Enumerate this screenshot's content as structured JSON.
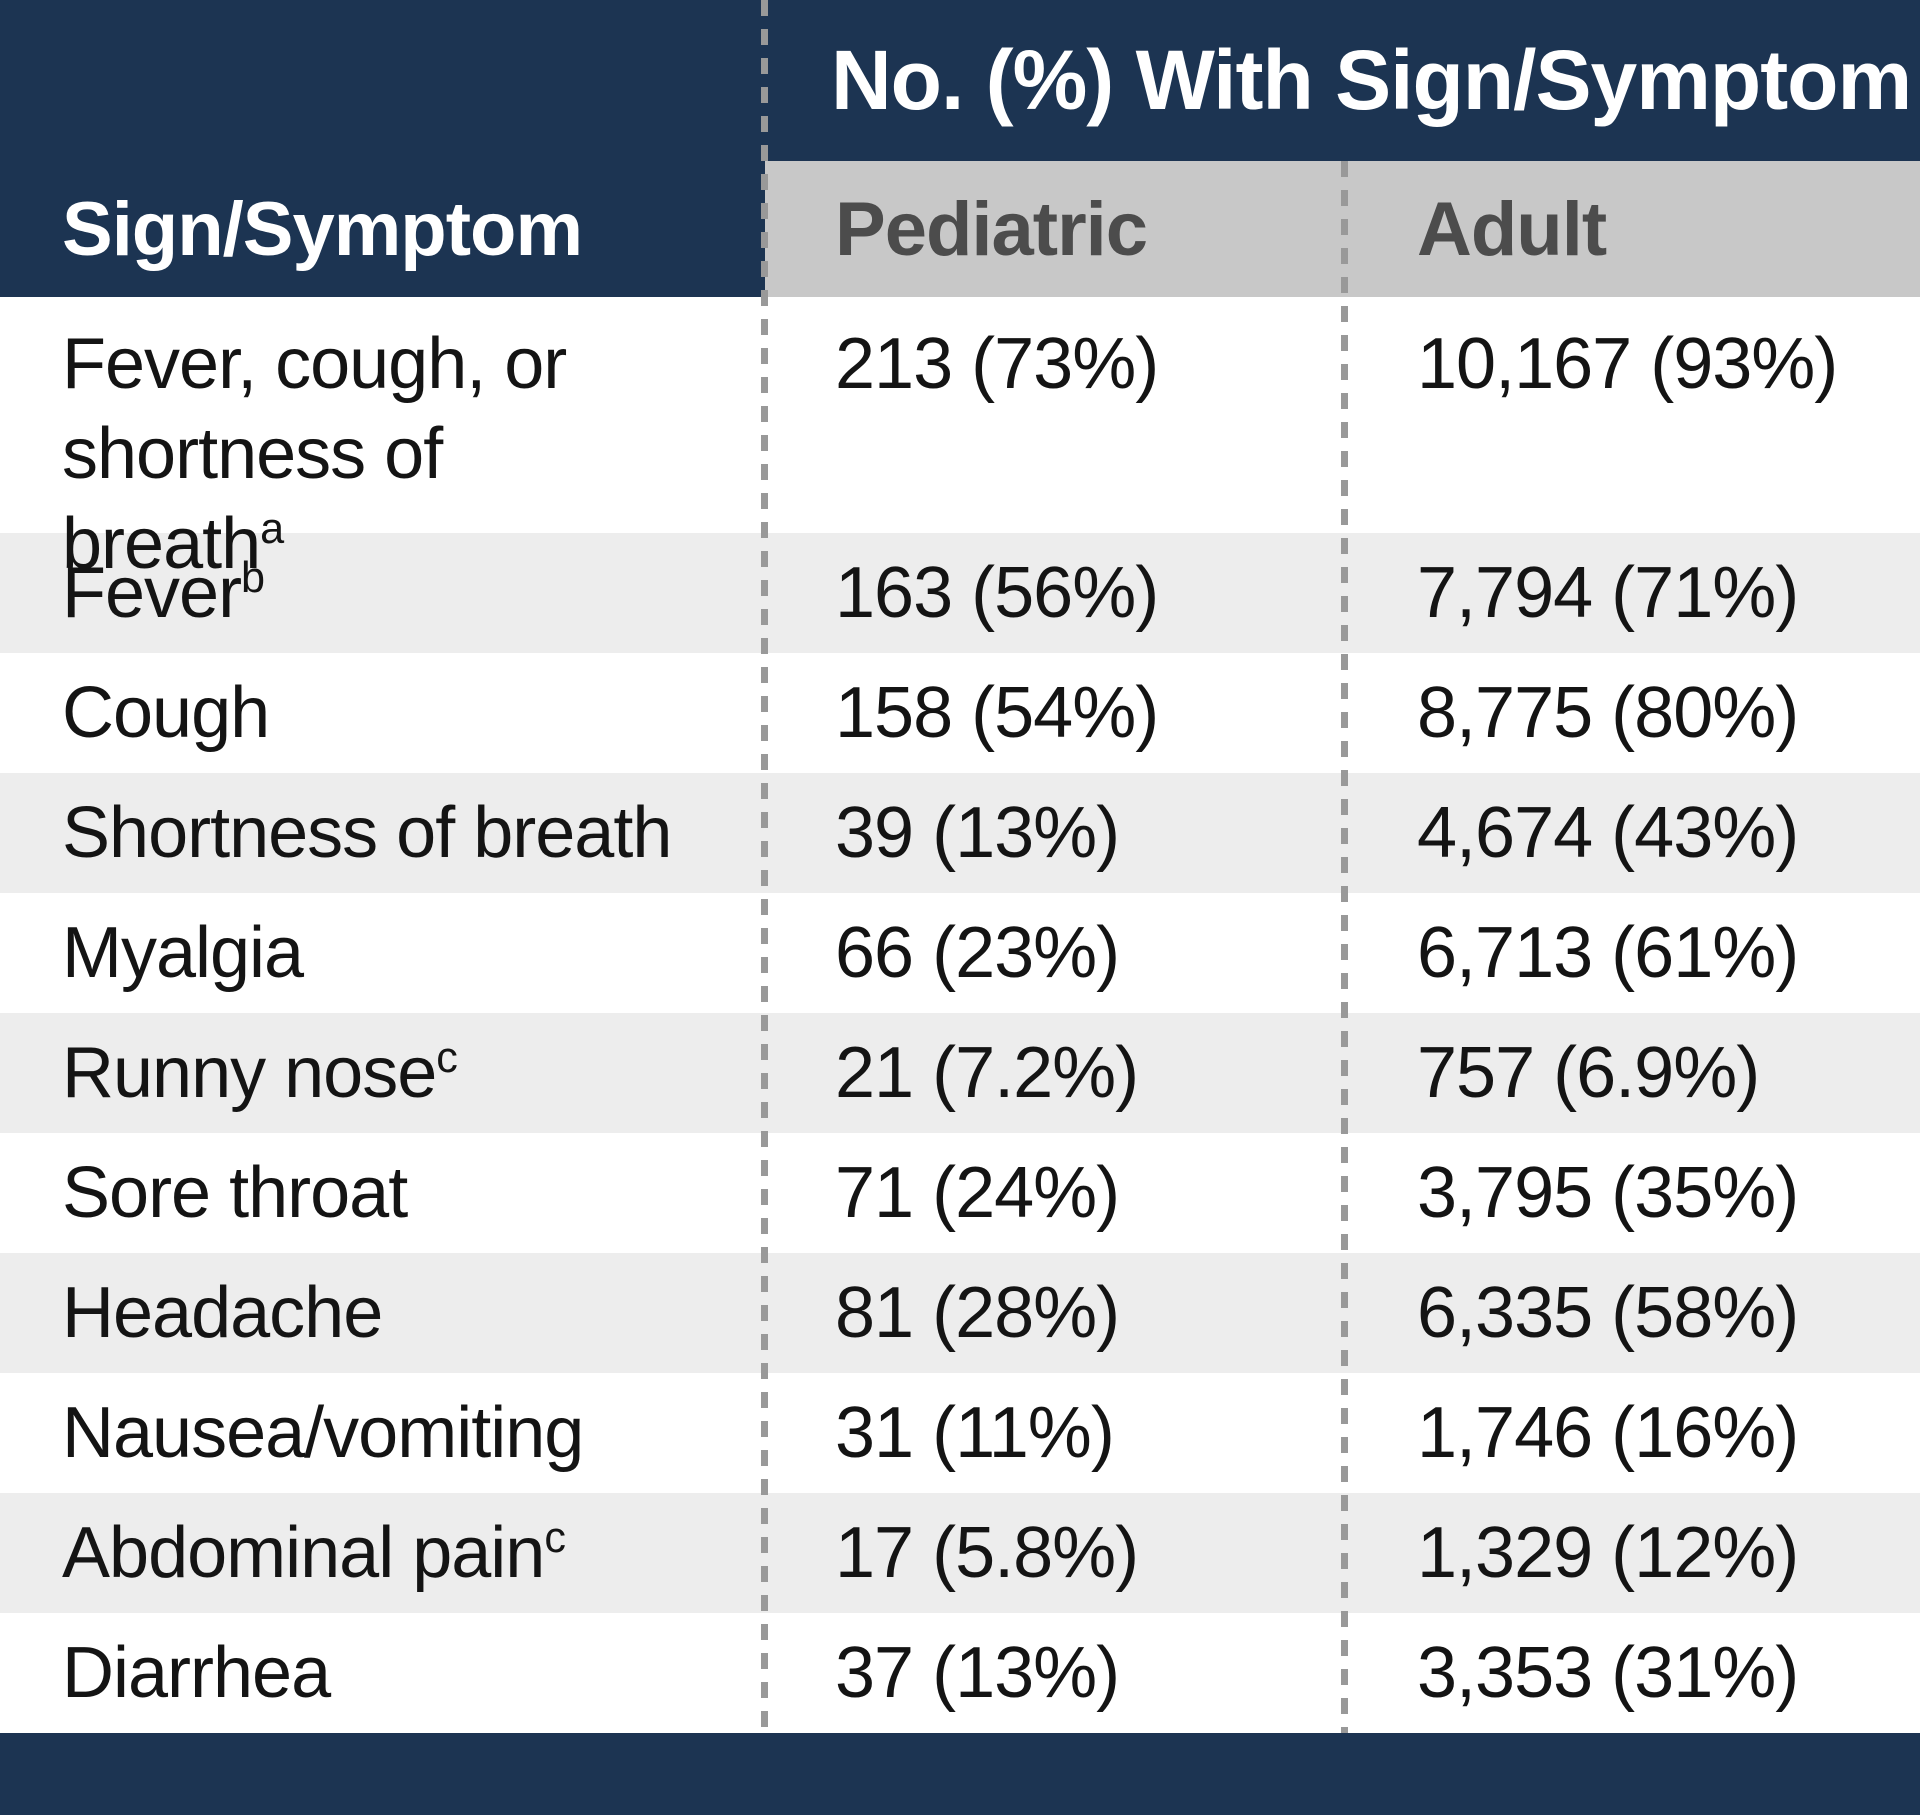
{
  "table": {
    "group_header": "No. (%) With Sign/Symptom",
    "col1_header": "Sign/Symptom",
    "col2_header": "Pediatric",
    "col3_header": "Adult",
    "rows": [
      {
        "label": "Fever, cough, or shortness of breath",
        "sup": "a",
        "pediatric": "213 (73%)",
        "adult": "10,167 (93%)"
      },
      {
        "label": "Fever",
        "sup": "b",
        "pediatric": "163 (56%)",
        "adult": "7,794 (71%)"
      },
      {
        "label": "Cough",
        "sup": "",
        "pediatric": "158 (54%)",
        "adult": "8,775 (80%)"
      },
      {
        "label": "Shortness of breath",
        "sup": "",
        "pediatric": "39 (13%)",
        "adult": "4,674 (43%)"
      },
      {
        "label": "Myalgia",
        "sup": "",
        "pediatric": "66 (23%)",
        "adult": "6,713 (61%)"
      },
      {
        "label": "Runny nose",
        "sup": "c",
        "pediatric": "21 (7.2%)",
        "adult": "757 (6.9%)"
      },
      {
        "label": "Sore throat",
        "sup": "",
        "pediatric": "71 (24%)",
        "adult": "3,795 (35%)"
      },
      {
        "label": "Headache",
        "sup": "",
        "pediatric": "81 (28%)",
        "adult": "6,335 (58%)"
      },
      {
        "label": "Nausea/vomiting",
        "sup": "",
        "pediatric": "31 (11%)",
        "adult": "1,746 (16%)"
      },
      {
        "label": "Abdominal pain",
        "sup": "c",
        "pediatric": "17 (5.8%)",
        "adult": "1,329 (12%)"
      },
      {
        "label": "Diarrhea",
        "sup": "",
        "pediatric": "37 (13%)",
        "adult": "3,353 (31%)"
      }
    ]
  },
  "colors": {
    "navy": "#1c3452",
    "subheader_band": "#c8c8c8",
    "row_stripe": "#ededed",
    "row_white": "#ffffff",
    "dash": "#999999",
    "header_text": "#ffffff",
    "subheader_text": "#4c4c4c",
    "body_text": "#141414"
  },
  "chart_data": {
    "type": "table",
    "title": "No. (%) With Sign/Symptom",
    "columns": [
      "Sign/Symptom",
      "Pediatric",
      "Adult"
    ],
    "categories": [
      "Fever, cough, or shortness of breath",
      "Fever",
      "Cough",
      "Shortness of breath",
      "Myalgia",
      "Runny nose",
      "Sore throat",
      "Headache",
      "Nausea/vomiting",
      "Abdominal pain",
      "Diarrhea"
    ],
    "footnote_markers": [
      "a",
      "b",
      "",
      "",
      "",
      "c",
      "",
      "",
      "",
      "c",
      ""
    ],
    "series": [
      {
        "name": "Pediatric",
        "n": [
          213,
          163,
          158,
          39,
          66,
          21,
          71,
          81,
          31,
          17,
          37
        ],
        "pct": [
          73,
          56,
          54,
          13,
          23,
          7.2,
          24,
          28,
          11,
          5.8,
          13
        ]
      },
      {
        "name": "Adult",
        "n": [
          10167,
          7794,
          8775,
          4674,
          6713,
          757,
          3795,
          6335,
          1746,
          1329,
          3353
        ],
        "pct": [
          93,
          71,
          80,
          43,
          61,
          6.9,
          35,
          58,
          16,
          12,
          31
        ]
      }
    ],
    "cells": [
      [
        "Fever, cough, or shortness of breath",
        "213 (73%)",
        "10,167 (93%)"
      ],
      [
        "Fever",
        "163 (56%)",
        "7,794 (71%)"
      ],
      [
        "Cough",
        "158 (54%)",
        "8,775 (80%)"
      ],
      [
        "Shortness of breath",
        "39 (13%)",
        "4,674 (43%)"
      ],
      [
        "Myalgia",
        "66 (23%)",
        "6,713 (61%)"
      ],
      [
        "Runny nose",
        "21 (7.2%)",
        "757 (6.9%)"
      ],
      [
        "Sore throat",
        "71 (24%)",
        "3,795 (35%)"
      ],
      [
        "Headache",
        "81 (28%)",
        "6,335 (58%)"
      ],
      [
        "Nausea/vomiting",
        "31 (11%)",
        "1,746 (16%)"
      ],
      [
        "Abdominal pain",
        "17 (5.8%)",
        "1,329 (12%)"
      ],
      [
        "Diarrhea",
        "37 (13%)",
        "3,353 (31%)"
      ]
    ]
  }
}
